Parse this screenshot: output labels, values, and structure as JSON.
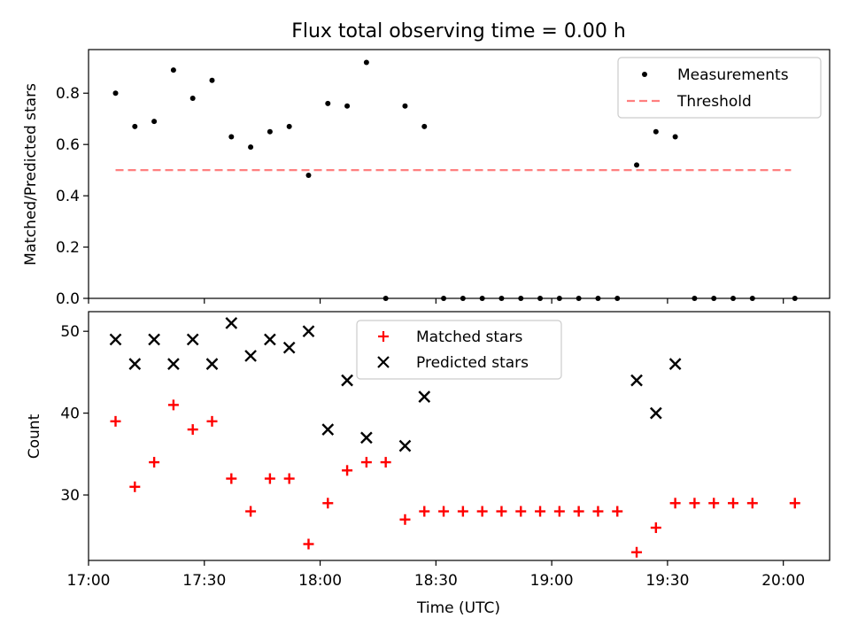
{
  "title": "Flux total observing time = 0.00 h",
  "colors": {
    "measurement": "#000000",
    "threshold": "#ff7f7f",
    "matched": "#ff0000",
    "predicted": "#000000",
    "axis": "#000000"
  },
  "chart_data": [
    {
      "type": "scatter",
      "ylabel": "Matched/Predicted stars",
      "ylim": [
        0,
        0.97
      ],
      "yticks": [
        0.0,
        0.2,
        0.4,
        0.6,
        0.8
      ],
      "ytick_labels": [
        "0.0",
        "0.2",
        "0.4",
        "0.6",
        "0.8"
      ],
      "legend": [
        "Measurements",
        "Threshold"
      ],
      "legend_position": "top-right",
      "series": [
        {
          "name": "Measurements",
          "marker": "dot",
          "x": [
            "17:07",
            "17:12",
            "17:17",
            "17:22",
            "17:27",
            "17:32",
            "17:37",
            "17:42",
            "17:47",
            "17:52",
            "17:57",
            "18:02",
            "18:07",
            "18:12",
            "18:17",
            "18:22",
            "18:27",
            "18:32",
            "18:37",
            "18:42",
            "18:47",
            "18:52",
            "18:57",
            "19:02",
            "19:07",
            "19:12",
            "19:17",
            "19:22",
            "19:27",
            "19:32",
            "19:37",
            "19:42",
            "19:47",
            "19:52",
            "20:03"
          ],
          "y": [
            0.8,
            0.67,
            0.69,
            0.89,
            0.78,
            0.85,
            0.63,
            0.59,
            0.65,
            0.67,
            0.48,
            0.76,
            0.75,
            0.92,
            0.0,
            0.75,
            0.67,
            0.0,
            0.0,
            0.0,
            0.0,
            0.0,
            0.0,
            0.0,
            0.0,
            0.0,
            0.0,
            0.52,
            0.65,
            0.63,
            0.0,
            0.0,
            0.0,
            0.0,
            0.0
          ]
        },
        {
          "name": "Threshold",
          "marker": "dashed-line",
          "x": [
            "17:07",
            "20:02"
          ],
          "y": [
            0.5,
            0.5
          ]
        }
      ]
    },
    {
      "type": "scatter",
      "xlabel": "Time (UTC)",
      "ylabel": "Count",
      "ylim": [
        22,
        52.4
      ],
      "yticks": [
        30,
        40,
        50
      ],
      "ytick_labels": [
        "30",
        "40",
        "50"
      ],
      "xlim": [
        "17:00",
        "20:12"
      ],
      "xticks": [
        "17:00",
        "17:30",
        "18:00",
        "18:30",
        "19:00",
        "19:30",
        "20:00"
      ],
      "xtick_labels": [
        "17:00",
        "17:30",
        "18:00",
        "18:30",
        "19:00",
        "19:30",
        "20:00"
      ],
      "legend": [
        "Matched stars",
        "Predicted stars"
      ],
      "legend_position": "top-center",
      "series": [
        {
          "name": "Matched stars",
          "marker": "plus",
          "x": [
            "17:07",
            "17:12",
            "17:17",
            "17:22",
            "17:27",
            "17:32",
            "17:37",
            "17:42",
            "17:47",
            "17:52",
            "17:57",
            "18:02",
            "18:07",
            "18:12",
            "18:17",
            "18:22",
            "18:27",
            "18:32",
            "18:37",
            "18:42",
            "18:47",
            "18:52",
            "18:57",
            "19:02",
            "19:07",
            "19:12",
            "19:17",
            "19:22",
            "19:27",
            "19:32",
            "19:37",
            "19:42",
            "19:47",
            "19:52",
            "20:03"
          ],
          "y": [
            39,
            31,
            34,
            41,
            38,
            39,
            32,
            28,
            32,
            32,
            24,
            29,
            33,
            34,
            34,
            27,
            28,
            28,
            28,
            28,
            28,
            28,
            28,
            28,
            28,
            28,
            28,
            23,
            26,
            29,
            29,
            29,
            29,
            29,
            29
          ]
        },
        {
          "name": "Predicted stars",
          "marker": "x",
          "x": [
            "17:07",
            "17:12",
            "17:17",
            "17:22",
            "17:27",
            "17:32",
            "17:37",
            "17:42",
            "17:47",
            "17:52",
            "17:57",
            "18:02",
            "18:07",
            "18:12",
            "18:22",
            "18:27",
            "19:22",
            "19:27",
            "19:32"
          ],
          "y": [
            49,
            46,
            49,
            46,
            49,
            46,
            51,
            47,
            49,
            48,
            50,
            38,
            44,
            37,
            36,
            42,
            44,
            40,
            46
          ]
        }
      ]
    }
  ]
}
